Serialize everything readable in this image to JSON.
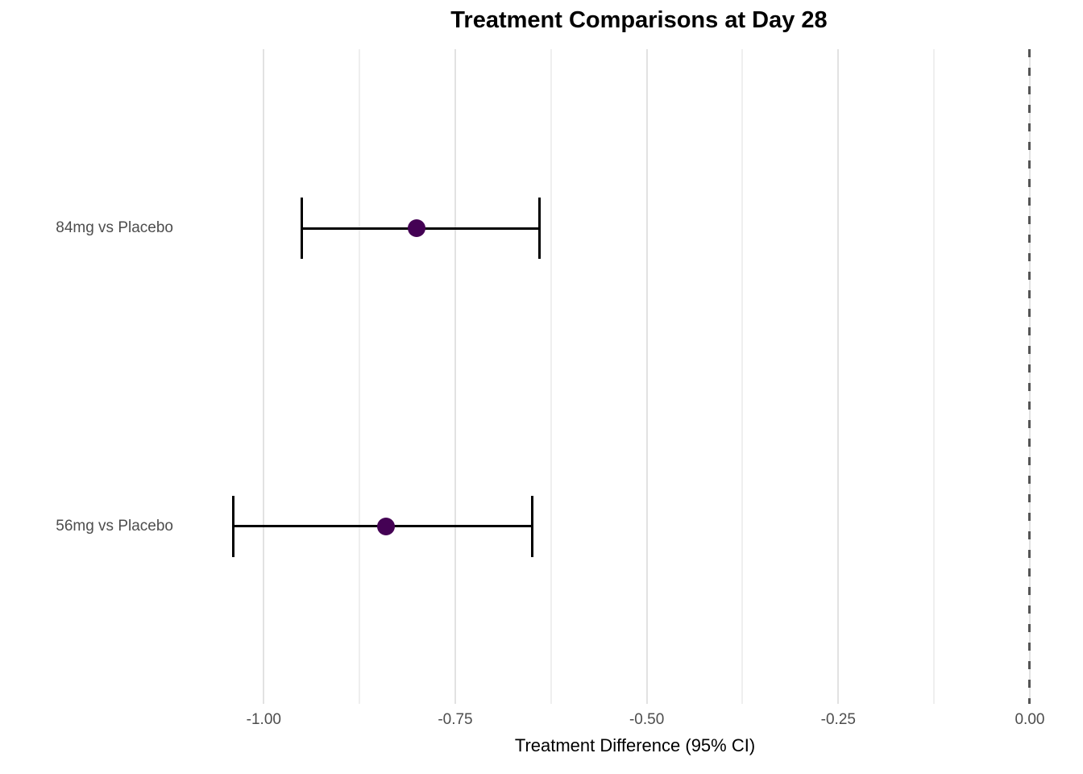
{
  "chart_data": {
    "type": "scatter",
    "subtype": "forest-plot-horizontal-ci",
    "title": "Treatment Comparisons at Day 28",
    "xlabel": "Treatment Difference (95% CI)",
    "ylabel": "",
    "legend": "none",
    "grid": "vertical-major-and-minor",
    "categories": [
      "84mg vs Placebo",
      "56mg vs Placebo"
    ],
    "series": [
      {
        "name": "84mg vs Placebo",
        "estimate": -0.8,
        "ci_low": -0.95,
        "ci_high": -0.64
      },
      {
        "name": "56mg vs Placebo",
        "estimate": -0.84,
        "ci_low": -1.04,
        "ci_high": -0.65
      }
    ],
    "x_axis": {
      "range": [
        -1.095,
        0.02
      ],
      "ticks": [
        {
          "value": -1.0,
          "label": "-1.00"
        },
        {
          "value": -0.75,
          "label": "-0.75"
        },
        {
          "value": -0.5,
          "label": "-0.50"
        },
        {
          "value": -0.25,
          "label": "-0.25"
        },
        {
          "value": 0.0,
          "label": "0.00"
        }
      ],
      "minor_ticks": [
        -0.875,
        -0.625,
        -0.375,
        -0.125
      ]
    },
    "reference_line": {
      "x": 0.0,
      "style": "dashed",
      "color": "#555555"
    },
    "colors": {
      "point": "#440154",
      "error_bar": "#000000",
      "grid_major": "#e2e2e2",
      "grid_minor": "#efefef",
      "tick_label": "#4d4d4d",
      "background": "#ffffff"
    }
  }
}
